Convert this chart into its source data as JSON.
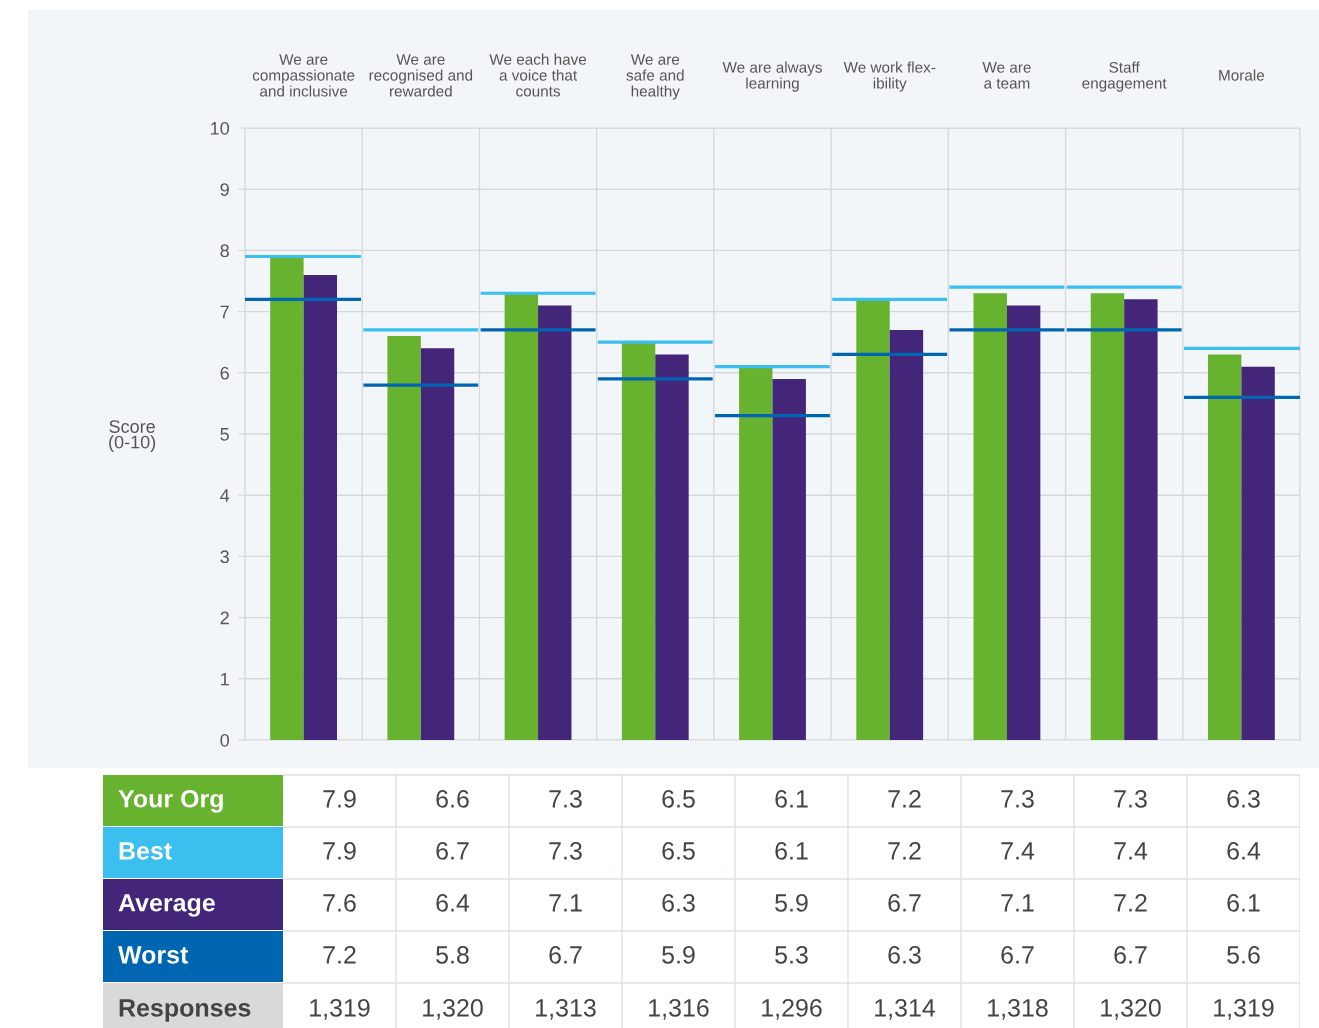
{
  "chart_data": {
    "type": "bar",
    "categories": [
      "We are\ncompassionate\nand inclusive",
      "We are\nrecognised and\nrewarded",
      "We each have\na voice that\ncounts",
      "We are\nsafe and\nhealthy",
      "We are always\nlearning",
      "We work flex-\nibility",
      "We are\na team",
      "Staff\nengagement",
      "Morale"
    ],
    "series": [
      {
        "name": "Your Org",
        "color": "#67b22f",
        "values": [
          7.9,
          6.6,
          7.3,
          6.5,
          6.1,
          7.2,
          7.3,
          7.3,
          6.3
        ]
      },
      {
        "name": "Best",
        "type": "step",
        "color": "#3bbfee",
        "values": [
          7.9,
          6.7,
          7.3,
          6.5,
          6.1,
          7.2,
          7.4,
          7.4,
          6.4
        ]
      },
      {
        "name": "Average",
        "color": "#43257a",
        "values": [
          7.6,
          6.4,
          7.1,
          6.3,
          5.9,
          6.7,
          7.1,
          7.2,
          6.1
        ]
      },
      {
        "name": "Worst",
        "type": "step",
        "color": "#0066b2",
        "values": [
          7.2,
          5.8,
          6.7,
          5.9,
          5.3,
          6.3,
          6.7,
          6.7,
          5.6
        ]
      }
    ],
    "ylabel": "Score\n(0-10)",
    "ylim": [
      0,
      10
    ],
    "yticks": [
      0,
      1,
      2,
      3,
      4,
      5,
      6,
      7,
      8,
      9,
      10
    ],
    "grid": true,
    "data_labels": true,
    "annotations": [
      "Responses",
      "1,319",
      "1,320",
      "1,313",
      "1,316",
      "1,296",
      "1,314",
      "1,318",
      "1,320",
      "1,319"
    ]
  }
}
